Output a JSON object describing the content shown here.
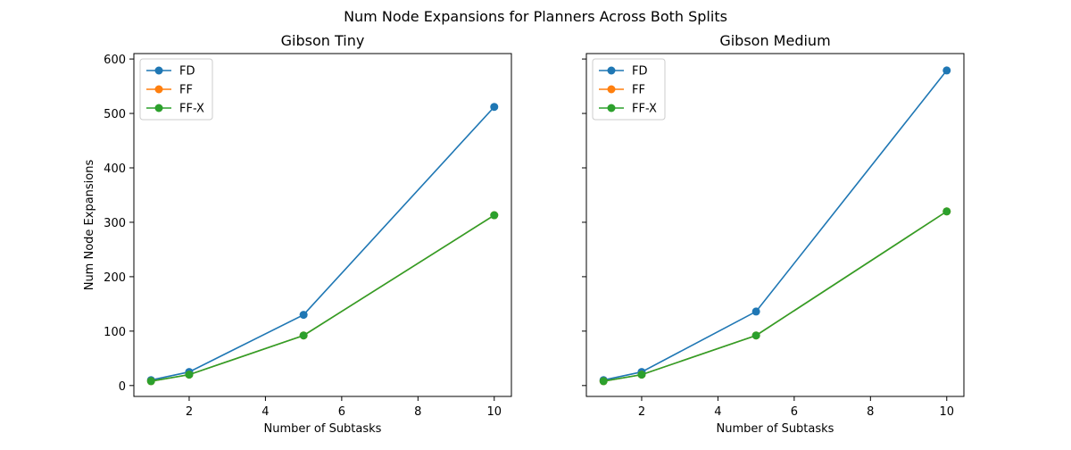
{
  "figure": {
    "suptitle": "Num Node Expansions for Planners Across Both Splits"
  },
  "colors": {
    "FD": "#1f77b4",
    "FF": "#ff7f0e",
    "FF-X": "#2ca02c"
  },
  "chart_data": [
    {
      "type": "line",
      "title": "Gibson Tiny",
      "xlabel": "Number of Subtasks",
      "ylabel": "Num Node Expansions",
      "x": [
        1,
        2,
        5,
        10
      ],
      "xlim": [
        0.55,
        10.45
      ],
      "ylim": [
        -20,
        610
      ],
      "xticks": [
        2,
        4,
        6,
        8,
        10
      ],
      "yticks": [
        0,
        100,
        200,
        300,
        400,
        500,
        600
      ],
      "show_ytick_labels": true,
      "legend": "upper-left",
      "grid": false,
      "series": [
        {
          "name": "FD",
          "values": [
            10,
            25,
            130,
            512
          ]
        },
        {
          "name": "FF",
          "values": [
            8,
            20,
            92,
            313
          ]
        },
        {
          "name": "FF-X",
          "values": [
            8,
            20,
            92,
            313
          ]
        }
      ]
    },
    {
      "type": "line",
      "title": "Gibson Medium",
      "xlabel": "Number of Subtasks",
      "ylabel": "",
      "x": [
        1,
        2,
        5,
        10
      ],
      "xlim": [
        0.55,
        10.45
      ],
      "ylim": [
        -20,
        610
      ],
      "xticks": [
        2,
        4,
        6,
        8,
        10
      ],
      "yticks": [
        0,
        100,
        200,
        300,
        400,
        500,
        600
      ],
      "show_ytick_labels": false,
      "legend": "upper-left",
      "grid": false,
      "series": [
        {
          "name": "FD",
          "values": [
            10,
            25,
            136,
            579
          ]
        },
        {
          "name": "FF",
          "values": [
            8,
            20,
            92,
            320
          ]
        },
        {
          "name": "FF-X",
          "values": [
            8,
            20,
            92,
            320
          ]
        }
      ]
    }
  ]
}
